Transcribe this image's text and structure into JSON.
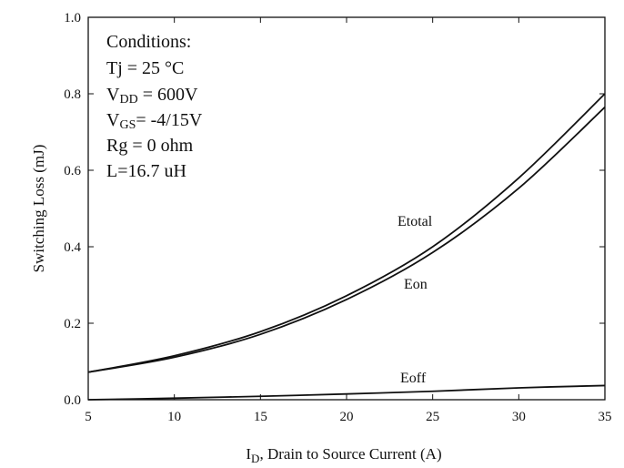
{
  "chart_data": {
    "type": "line",
    "xlabel_main": "I",
    "xlabel_sub": "D",
    "xlabel_rest": ", Drain to Source Current (A)",
    "ylabel": "Switching Loss (mJ)",
    "xlim": [
      5,
      35
    ],
    "ylim": [
      0.0,
      1.0
    ],
    "xticks": [
      "5",
      "10",
      "15",
      "20",
      "25",
      "30",
      "35"
    ],
    "yticks": [
      "0.0",
      "0.2",
      "0.4",
      "0.6",
      "0.8",
      "1.0"
    ],
    "grid": false,
    "conditions": {
      "title": "Conditions:",
      "tj": "Tj = 25 °C",
      "vdd_prefix": "V",
      "vdd_sub": "DD",
      "vdd_rest": " = 600V",
      "vgs_prefix": "V",
      "vgs_sub": "GS",
      "vgs_rest": "= -4/15V",
      "rg": "Rg = 0 ohm",
      "l": "L=16.7 uH"
    },
    "series": [
      {
        "name": "Etotal",
        "x": [
          5,
          10,
          15,
          20,
          25,
          30,
          35
        ],
        "values": [
          0.072,
          0.115,
          0.178,
          0.272,
          0.4,
          0.58,
          0.8
        ]
      },
      {
        "name": "Eon",
        "x": [
          5,
          10,
          15,
          20,
          25,
          30,
          35
        ],
        "values": [
          0.072,
          0.111,
          0.171,
          0.262,
          0.385,
          0.553,
          0.765
        ]
      },
      {
        "name": "Eoff",
        "x": [
          5,
          10,
          15,
          20,
          25,
          30,
          35
        ],
        "values": [
          0.0,
          0.004,
          0.009,
          0.015,
          0.022,
          0.031,
          0.037
        ]
      }
    ]
  }
}
